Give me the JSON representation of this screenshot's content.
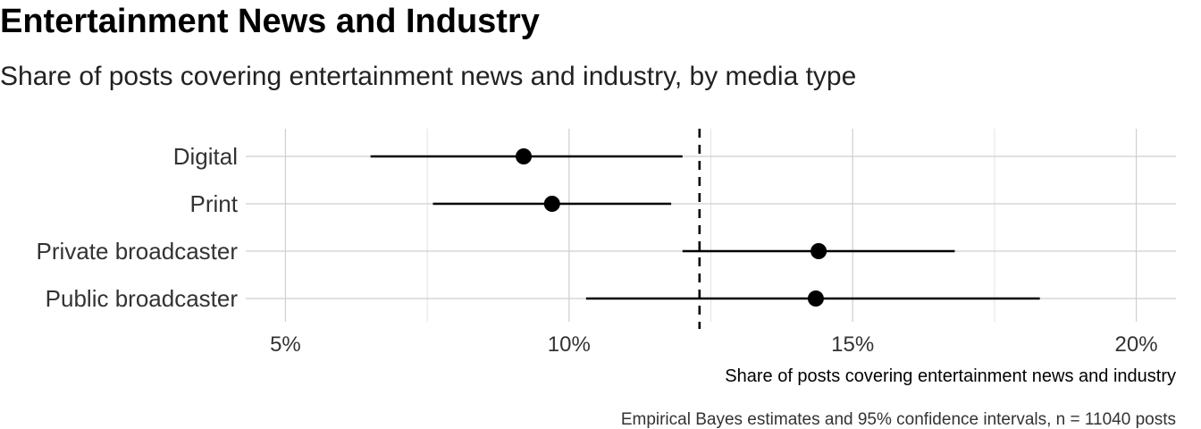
{
  "chart_data": {
    "type": "scatter",
    "title": "Entertainment News and Industry",
    "subtitle": "Share of posts covering entertainment news and industry, by media type",
    "xlabel": "Share of posts covering entertainment news and industry",
    "caption": "Empirical Bayes estimates and 95% confidence intervals, n = 11040 posts",
    "xlim": [
      4.3,
      20.7
    ],
    "xticks": [
      5,
      10,
      15,
      20
    ],
    "xtick_labels": [
      "5%",
      "10%",
      "15%",
      "20%"
    ],
    "grid": true,
    "reference_line": 12.3,
    "categories": [
      "Digital",
      "Print",
      "Private broadcaster",
      "Public broadcaster"
    ],
    "estimates": [
      9.2,
      9.7,
      14.4,
      14.35
    ],
    "ci_low": [
      6.5,
      7.6,
      12.0,
      10.3
    ],
    "ci_high": [
      12.0,
      11.8,
      16.8,
      18.3
    ]
  }
}
